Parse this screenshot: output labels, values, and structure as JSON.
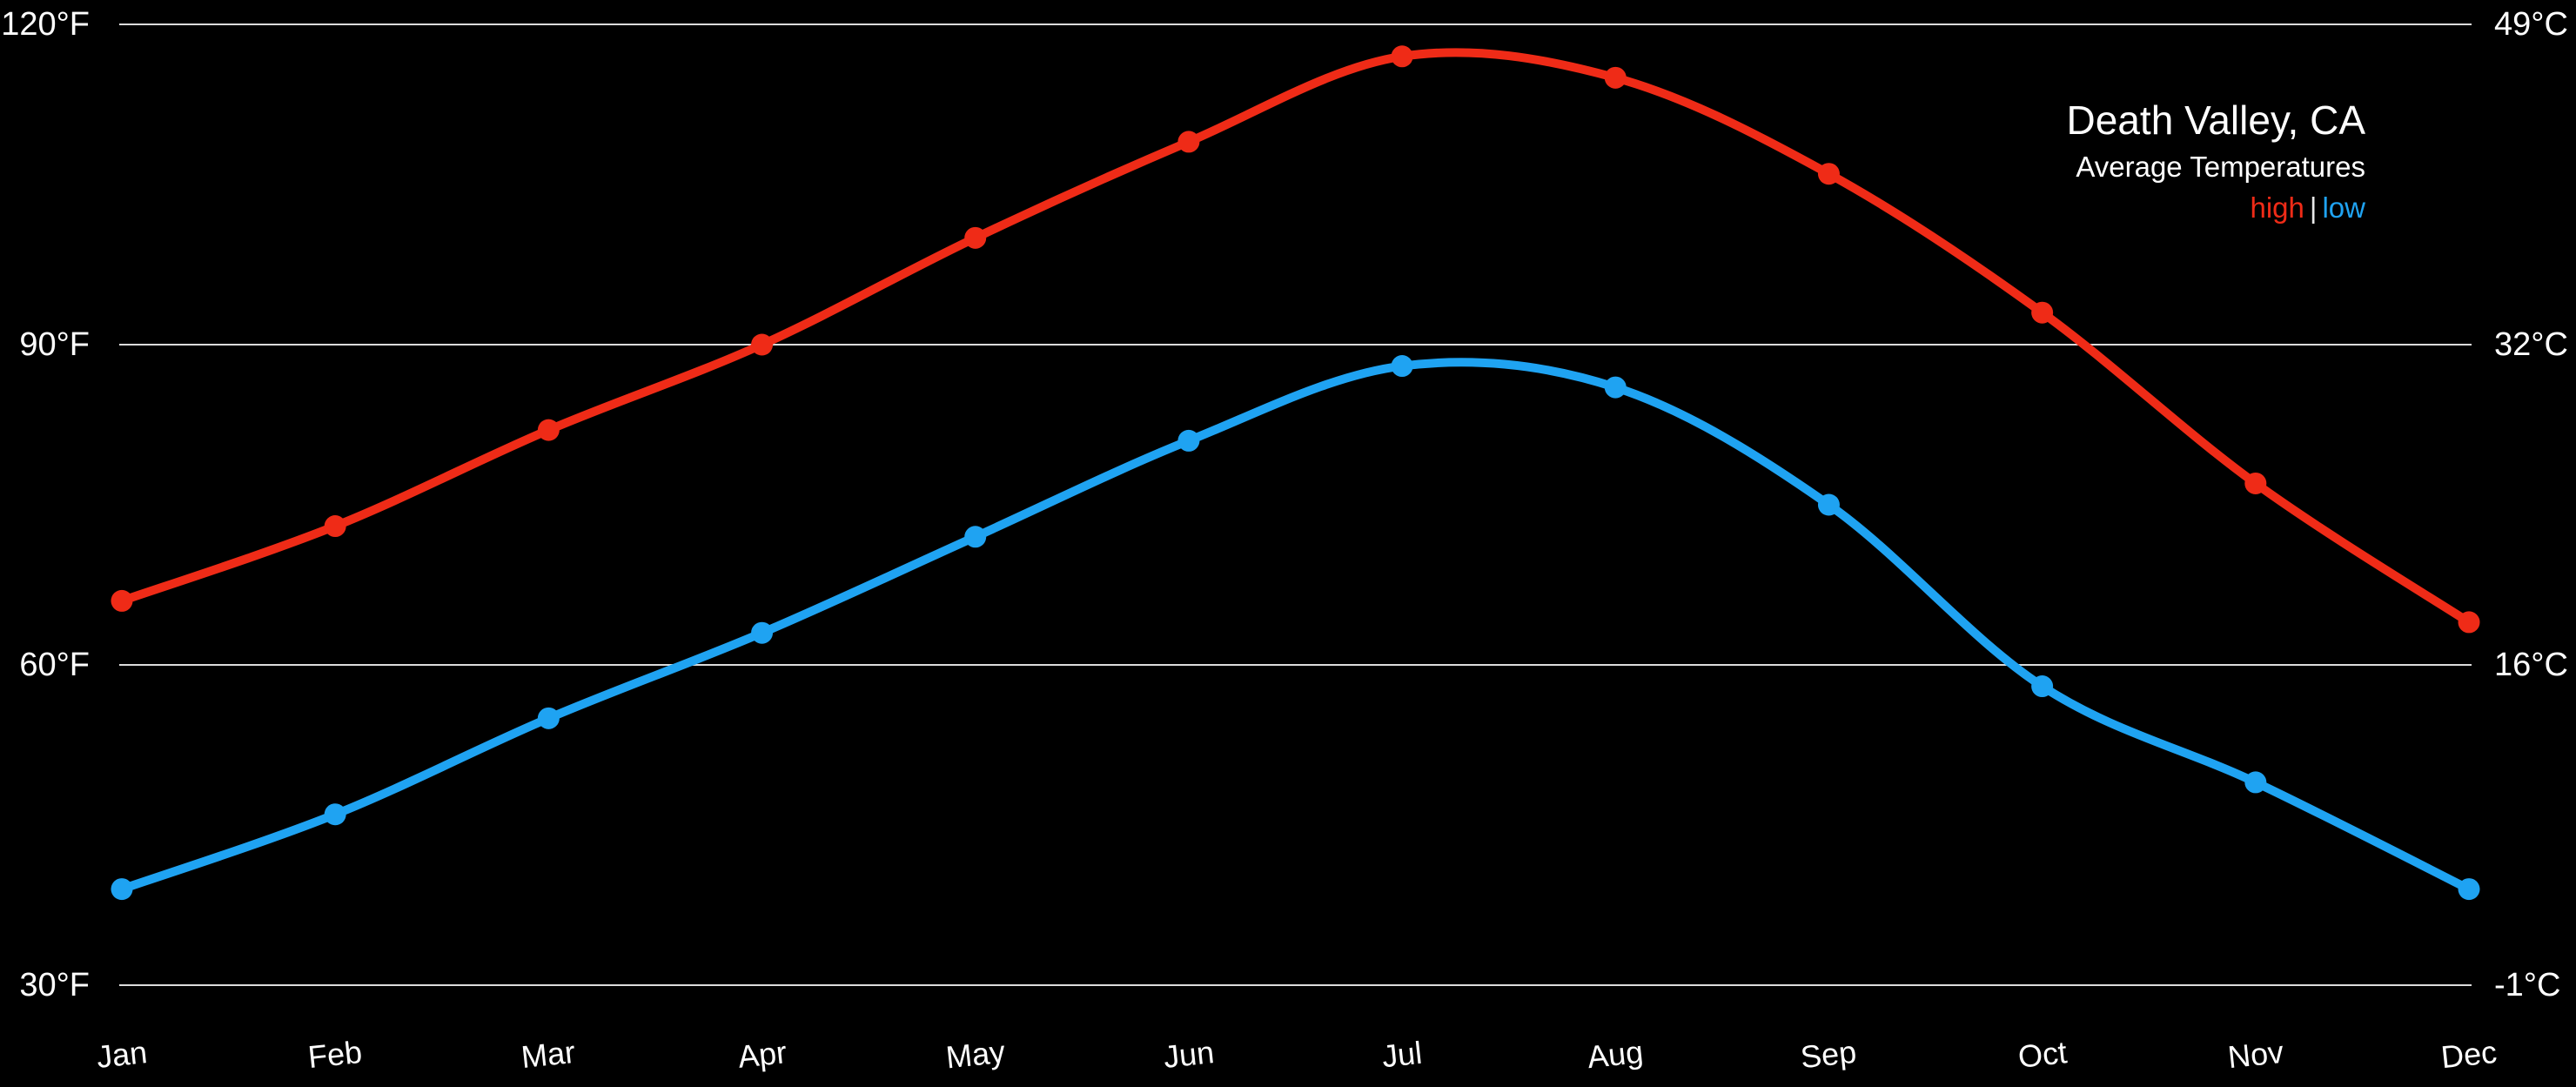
{
  "title": "Death Valley, CA",
  "subtitle": "Average Temperatures",
  "legend": {
    "high_label": "high",
    "separator": "|",
    "low_label": "low"
  },
  "colors": {
    "high": "#ef2b17",
    "low": "#1fa3f2",
    "grid": "#dcdcdc",
    "background": "#000000",
    "text": "#ffffff"
  },
  "chart_data": {
    "type": "line",
    "title": "Death Valley, CA",
    "subtitle": "Average Temperatures",
    "categories": [
      "Jan",
      "Feb",
      "Mar",
      "Apr",
      "May",
      "Jun",
      "Jul",
      "Aug",
      "Sep",
      "Oct",
      "Nov",
      "Dec"
    ],
    "series": [
      {
        "name": "high",
        "color": "#ef2b17",
        "unit": "°F",
        "values": [
          66,
          73,
          82,
          90,
          100,
          109,
          117,
          115,
          106,
          93,
          77,
          64
        ]
      },
      {
        "name": "low",
        "color": "#1fa3f2",
        "unit": "°F",
        "values": [
          39,
          46,
          55,
          63,
          72,
          81,
          88,
          86,
          75,
          58,
          49,
          39
        ]
      }
    ],
    "y_axis_left": {
      "unit": "°F",
      "tick_labels": [
        "120°F",
        "90°F",
        "60°F",
        "30°F"
      ],
      "tick_values": [
        120,
        90,
        60,
        30
      ]
    },
    "y_axis_right": {
      "unit": "°C",
      "tick_labels": [
        "49°C",
        "32°C",
        "16°C",
        "-1°C"
      ]
    },
    "grid": true,
    "legend_position": "top-right",
    "legend_entries": [
      "high",
      "low"
    ]
  }
}
